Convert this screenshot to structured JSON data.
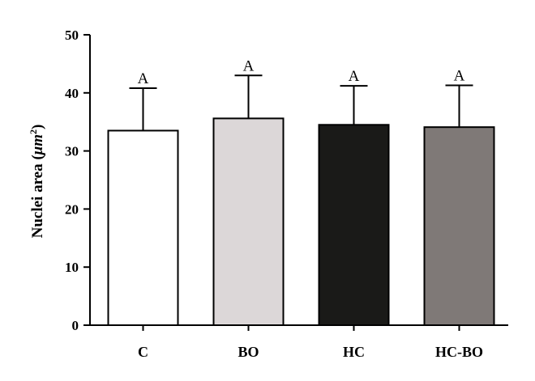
{
  "chart_data": {
    "type": "bar",
    "categories": [
      "C",
      "BO",
      "HC",
      "HC-BO"
    ],
    "values": [
      33.5,
      35.6,
      34.5,
      34.1
    ],
    "error_upper": [
      40.8,
      43.0,
      41.2,
      41.3
    ],
    "significance_letters": [
      "A",
      "A",
      "A",
      "A"
    ],
    "bar_colors": [
      "#ffffff",
      "#dcd7d8",
      "#1a1a18",
      "#7f7977"
    ],
    "ylabel_text": "Nuclei area (",
    "ylabel_unit": "μm",
    "ylabel_exp": "2",
    "ylabel_close": ")",
    "ylim": [
      0,
      50
    ],
    "yticks": [
      0,
      10,
      20,
      30,
      40,
      50
    ],
    "grid": false
  }
}
